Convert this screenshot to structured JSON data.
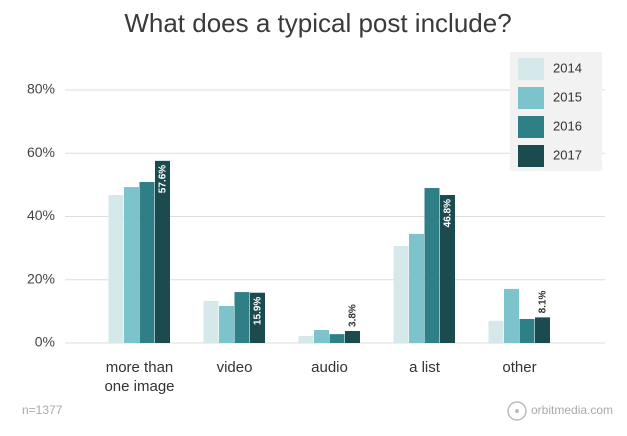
{
  "chart_data": {
    "type": "bar",
    "title": "What does a typical post include?",
    "categories": [
      "more than one image",
      "video",
      "audio",
      "a list",
      "other"
    ],
    "series": [
      {
        "name": "2014",
        "color": "#d5e8ea",
        "values": [
          46.8,
          13.3,
          2.2,
          30.7,
          7.0
        ]
      },
      {
        "name": "2015",
        "color": "#7cc3cc",
        "values": [
          49.3,
          11.7,
          4.1,
          34.5,
          17.1
        ]
      },
      {
        "name": "2016",
        "color": "#2f7f86",
        "values": [
          50.9,
          16.1,
          2.8,
          49.0,
          7.6
        ]
      },
      {
        "name": "2017",
        "color": "#1b4a4f",
        "values": [
          57.6,
          15.9,
          3.8,
          46.8,
          8.1
        ],
        "value_labels": [
          "57.6%",
          "15.9%",
          "3.8%",
          "46.8%",
          "8.1%"
        ]
      }
    ],
    "ylim": [
      0,
      80
    ],
    "yticks": [
      {
        "value": 0,
        "label": "0%"
      },
      {
        "value": 20,
        "label": "20%"
      },
      {
        "value": 40,
        "label": "40%"
      },
      {
        "value": 60,
        "label": "60%"
      },
      {
        "value": 80,
        "label": "80%"
      }
    ],
    "grid": true,
    "legend": "top-right",
    "note": "n=1377",
    "source": "orbitmedia.com"
  }
}
